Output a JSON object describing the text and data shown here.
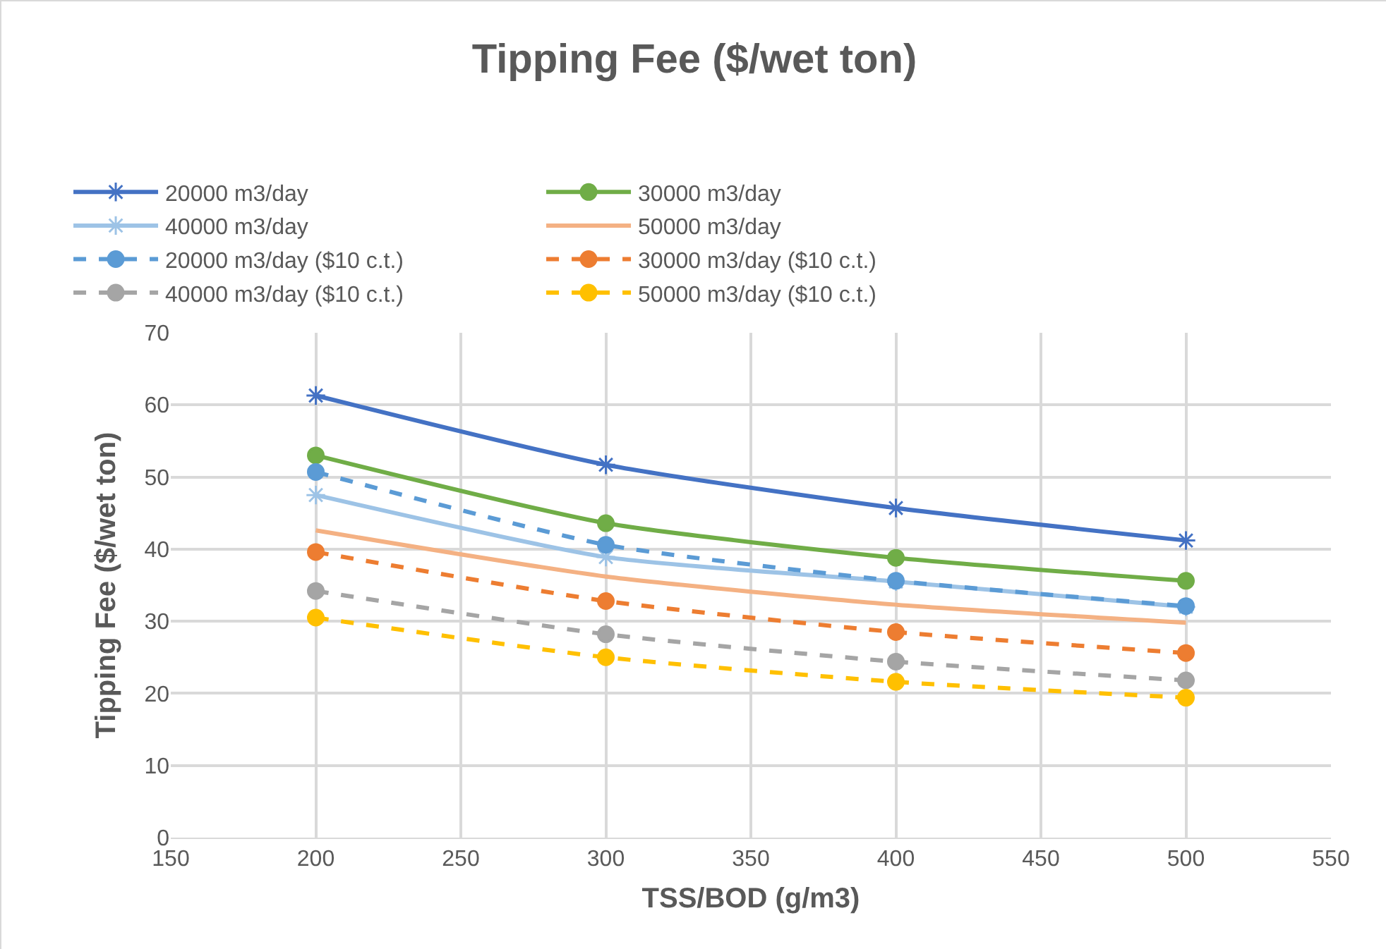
{
  "chart_data": {
    "type": "line",
    "title": "Tipping Fee ($/wet ton)",
    "xlabel": "TSS/BOD (g/m3)",
    "ylabel": "Tipping Fee ($/wet ton)",
    "x": [
      200,
      300,
      400,
      500
    ],
    "xlim": [
      150,
      550
    ],
    "xticks": [
      150,
      200,
      250,
      300,
      350,
      400,
      450,
      500,
      550
    ],
    "ylim": [
      0,
      70
    ],
    "yticks": [
      0,
      10,
      20,
      30,
      40,
      50,
      60,
      70
    ],
    "grid": true,
    "legend": "top",
    "series": [
      {
        "name": "20000 m3/day",
        "color": "#4472c4",
        "marker": "cross",
        "line_style": "solid",
        "values": [
          61.3,
          51.7,
          45.7,
          41.2
        ]
      },
      {
        "name": "30000 m3/day",
        "color": "#70ad47",
        "marker": "circle",
        "line_style": "solid",
        "values": [
          53.0,
          43.6,
          38.8,
          35.6
        ]
      },
      {
        "name": "40000 m3/day",
        "color": "#9dc3e6",
        "marker": "cross",
        "line_style": "solid",
        "values": [
          47.5,
          38.9,
          35.5,
          32.0
        ]
      },
      {
        "name": "50000 m3/day",
        "color": "#f4b183",
        "marker": "none",
        "line_style": "solid",
        "values": [
          42.6,
          36.2,
          32.3,
          29.8
        ]
      },
      {
        "name": "20000 m3/day ($10 c.t.)",
        "color": "#5b9bd5",
        "marker": "circle",
        "line_style": "dashed",
        "values": [
          50.7,
          40.6,
          35.6,
          32.1
        ]
      },
      {
        "name": "30000 m3/day ($10 c.t.)",
        "color": "#ed7d31",
        "marker": "circle",
        "line_style": "dashed",
        "values": [
          39.6,
          32.8,
          28.5,
          25.6
        ]
      },
      {
        "name": "40000 m3/day ($10 c.t.)",
        "color": "#a5a5a5",
        "marker": "circle",
        "line_style": "dashed",
        "values": [
          34.2,
          28.2,
          24.4,
          21.8
        ]
      },
      {
        "name": "50000 m3/day ($10 c.t.)",
        "color": "#ffc000",
        "marker": "circle",
        "line_style": "dashed",
        "values": [
          30.5,
          25.0,
          21.6,
          19.4
        ]
      }
    ]
  }
}
